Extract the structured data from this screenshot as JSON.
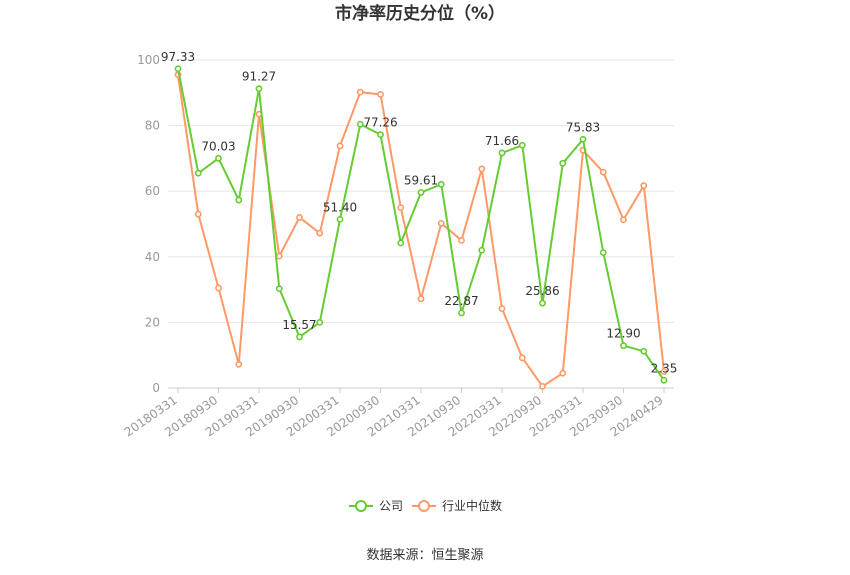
{
  "chart_data": {
    "type": "line",
    "title": "市净率历史分位（%）",
    "ylim": [
      0,
      100
    ],
    "yticks": [
      0,
      20,
      40,
      60,
      80,
      100
    ],
    "x_labels": [
      "20180331",
      "20180930",
      "20190331",
      "20190930",
      "20200331",
      "20200930",
      "20210331",
      "20210930",
      "20220331",
      "20220930",
      "20230331",
      "20230930",
      "20240429"
    ],
    "x_count": 25,
    "grid": true,
    "legend": "bottom-center",
    "series": [
      {
        "name": "公司",
        "color": "#66cc33",
        "values": [
          97.33,
          65.5,
          70.03,
          57.3,
          91.27,
          30.3,
          15.57,
          20.0,
          51.4,
          80.4,
          77.26,
          44.2,
          59.61,
          62.1,
          22.87,
          42.0,
          71.66,
          74.0,
          25.86,
          68.5,
          75.83,
          41.3,
          12.9,
          11.2,
          2.35
        ],
        "labels": {
          "0": "97.33",
          "2": "70.03",
          "4": "91.27",
          "6": "15.57",
          "8": "51.40",
          "10": "77.26",
          "12": "59.61",
          "14": "22.87",
          "16": "71.66",
          "18": "25.86",
          "20": "75.83",
          "22": "12.90",
          "24": "2.35"
        }
      },
      {
        "name": "行业中位数",
        "color": "#ff9966",
        "values": [
          95.5,
          53.0,
          30.5,
          7.2,
          83.5,
          40.2,
          52.0,
          47.2,
          73.8,
          90.2,
          89.5,
          55.0,
          27.2,
          50.2,
          45.0,
          66.8,
          24.2,
          9.2,
          0.5,
          4.5,
          72.5,
          65.8,
          51.3,
          61.7,
          5.0
        ]
      }
    ]
  },
  "footer": {
    "source": "数据来源：恒生聚源"
  }
}
